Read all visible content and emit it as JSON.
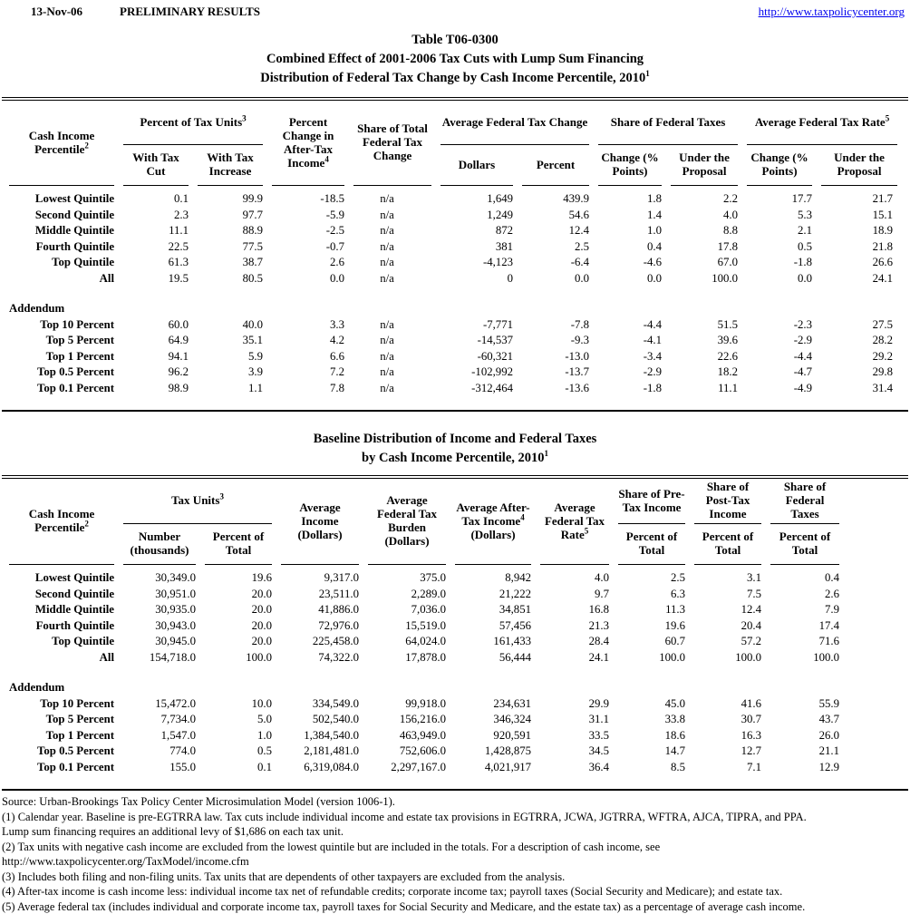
{
  "colors": {
    "link_blue": "#0000ee"
  },
  "topbar": {
    "date": "13-Nov-06",
    "status": "PRELIMINARY RESULTS",
    "link": "http://www.taxpolicycenter.org"
  },
  "title": {
    "line1": "Table T06-0300",
    "line2": "Combined Effect of 2001-2006 Tax Cuts with Lump Sum Financing",
    "line3": "Distribution of Federal Tax Change by Cash Income Percentile, 2010",
    "line3_sup": "1"
  },
  "table1": {
    "h": {
      "stub_pre": "Cash Income Percentile",
      "stub_sup": "2",
      "tax_units_pre": "Percent of Tax Units",
      "tax_units_sup": "3",
      "with_cut": "With Tax Cut",
      "with_increase": "With Tax Increase",
      "pct_change_pre": "Percent Change in After-Tax Income",
      "pct_change_sup": "4",
      "share_total": "Share of Total Federal Tax Change",
      "avg_change": "Average Federal Tax Change",
      "dollars": "Dollars",
      "percent": "Percent",
      "share_fed": "Share of Federal Taxes",
      "chg_pts": "Change (% Points)",
      "under_prop": "Under the Proposal",
      "avg_rate_pre": "Average Federal Tax Rate",
      "avg_rate_sup": "5"
    },
    "rows": [
      {
        "label": "Lowest Quintile",
        "values": [
          "0.1",
          "99.9",
          "-18.5",
          "n/a",
          "1,649",
          "439.9",
          "1.8",
          "2.2",
          "17.7",
          "21.7"
        ]
      },
      {
        "label": "Second Quintile",
        "values": [
          "2.3",
          "97.7",
          "-5.9",
          "n/a",
          "1,249",
          "54.6",
          "1.4",
          "4.0",
          "5.3",
          "15.1"
        ]
      },
      {
        "label": "Middle Quintile",
        "values": [
          "11.1",
          "88.9",
          "-2.5",
          "n/a",
          "872",
          "12.4",
          "1.0",
          "8.8",
          "2.1",
          "18.9"
        ]
      },
      {
        "label": "Fourth Quintile",
        "values": [
          "22.5",
          "77.5",
          "-0.7",
          "n/a",
          "381",
          "2.5",
          "0.4",
          "17.8",
          "0.5",
          "21.8"
        ]
      },
      {
        "label": "Top Quintile",
        "values": [
          "61.3",
          "38.7",
          "2.6",
          "n/a",
          "-4,123",
          "-6.4",
          "-4.6",
          "67.0",
          "-1.8",
          "26.6"
        ]
      },
      {
        "label": "All",
        "values": [
          "19.5",
          "80.5",
          "0.0",
          "n/a",
          "0",
          "0.0",
          "0.0",
          "100.0",
          "0.0",
          "24.1"
        ]
      }
    ],
    "addendum_label": "Addendum",
    "addendum_rows": [
      {
        "label": "Top 10 Percent",
        "values": [
          "60.0",
          "40.0",
          "3.3",
          "n/a",
          "-7,771",
          "-7.8",
          "-4.4",
          "51.5",
          "-2.3",
          "27.5"
        ]
      },
      {
        "label": "Top 5 Percent",
        "values": [
          "64.9",
          "35.1",
          "4.2",
          "n/a",
          "-14,537",
          "-9.3",
          "-4.1",
          "39.6",
          "-2.9",
          "28.2"
        ]
      },
      {
        "label": "Top 1 Percent",
        "values": [
          "94.1",
          "5.9",
          "6.6",
          "n/a",
          "-60,321",
          "-13.0",
          "-3.4",
          "22.6",
          "-4.4",
          "29.2"
        ]
      },
      {
        "label": "Top 0.5 Percent",
        "values": [
          "96.2",
          "3.9",
          "7.2",
          "n/a",
          "-102,992",
          "-13.7",
          "-2.9",
          "18.2",
          "-4.7",
          "29.8"
        ]
      },
      {
        "label": "Top 0.1 Percent",
        "values": [
          "98.9",
          "1.1",
          "7.8",
          "n/a",
          "-312,464",
          "-13.6",
          "-1.8",
          "11.1",
          "-4.9",
          "31.4"
        ]
      }
    ]
  },
  "title2": {
    "line1": "Baseline Distribution of Income and Federal Taxes",
    "line2": "by Cash Income Percentile, 2010",
    "line2_sup": "1"
  },
  "table2": {
    "h": {
      "stub_pre": "Cash Income Percentile",
      "stub_sup": "2",
      "tax_units_pre": "Tax Units",
      "tax_units_sup": "3",
      "number": "Number (thousands)",
      "pct_total": "Percent of Total",
      "avg_income": "Average Income (Dollars)",
      "avg_burden": "Average Federal Tax Burden (Dollars)",
      "aftertax_pre": "Average After-Tax Income",
      "aftertax_sup": "4",
      "aftertax_post": " (Dollars)",
      "avg_rate_pre": "Average Federal Tax Rate",
      "avg_rate_sup": "5",
      "share_pre_tax": "Share of Pre-Tax Income",
      "share_post_tax": "Share of Post-Tax Income",
      "share_fed_taxes": "Share of Federal Taxes"
    },
    "rows": [
      {
        "label": "Lowest Quintile",
        "values": [
          "30,349.0",
          "19.6",
          "9,317.0",
          "375.0",
          "8,942",
          "4.0",
          "2.5",
          "3.1",
          "0.4"
        ]
      },
      {
        "label": "Second Quintile",
        "values": [
          "30,951.0",
          "20.0",
          "23,511.0",
          "2,289.0",
          "21,222",
          "9.7",
          "6.3",
          "7.5",
          "2.6"
        ]
      },
      {
        "label": "Middle Quintile",
        "values": [
          "30,935.0",
          "20.0",
          "41,886.0",
          "7,036.0",
          "34,851",
          "16.8",
          "11.3",
          "12.4",
          "7.9"
        ]
      },
      {
        "label": "Fourth Quintile",
        "values": [
          "30,943.0",
          "20.0",
          "72,976.0",
          "15,519.0",
          "57,456",
          "21.3",
          "19.6",
          "20.4",
          "17.4"
        ]
      },
      {
        "label": "Top Quintile",
        "values": [
          "30,945.0",
          "20.0",
          "225,458.0",
          "64,024.0",
          "161,433",
          "28.4",
          "60.7",
          "57.2",
          "71.6"
        ]
      },
      {
        "label": "All",
        "values": [
          "154,718.0",
          "100.0",
          "74,322.0",
          "17,878.0",
          "56,444",
          "24.1",
          "100.0",
          "100.0",
          "100.0"
        ]
      }
    ],
    "addendum_label": "Addendum",
    "addendum_rows": [
      {
        "label": "Top 10 Percent",
        "values": [
          "15,472.0",
          "10.0",
          "334,549.0",
          "99,918.0",
          "234,631",
          "29.9",
          "45.0",
          "41.6",
          "55.9"
        ]
      },
      {
        "label": "Top 5 Percent",
        "values": [
          "7,734.0",
          "5.0",
          "502,540.0",
          "156,216.0",
          "346,324",
          "31.1",
          "33.8",
          "30.7",
          "43.7"
        ]
      },
      {
        "label": "Top 1 Percent",
        "values": [
          "1,547.0",
          "1.0",
          "1,384,540.0",
          "463,949.0",
          "920,591",
          "33.5",
          "18.6",
          "16.3",
          "26.0"
        ]
      },
      {
        "label": "Top 0.5 Percent",
        "values": [
          "774.0",
          "0.5",
          "2,181,481.0",
          "752,606.0",
          "1,428,875",
          "34.5",
          "14.7",
          "12.7",
          "21.1"
        ]
      },
      {
        "label": "Top 0.1 Percent",
        "values": [
          "155.0",
          "0.1",
          "6,319,084.0",
          "2,297,167.0",
          "4,021,917",
          "36.4",
          "8.5",
          "7.1",
          "12.9"
        ]
      }
    ]
  },
  "notes": [
    "Source: Urban-Brookings Tax Policy Center Microsimulation Model (version 1006-1).",
    "(1) Calendar year. Baseline is pre-EGTRRA law. Tax cuts include individual income and estate tax provisions in EGTRRA, JCWA, JGTRRA, WFTRA, AJCA, TIPRA, and PPA.",
    "Lump sum financing requires an additional levy of $1,686 on each tax unit.",
    "(2) Tax units with negative cash income are excluded from the lowest quintile but are included in the totals. For a description of cash income, see",
    "http://www.taxpolicycenter.org/TaxModel/income.cfm",
    "(3) Includes both filing and non-filing units.  Tax units that are dependents of other taxpayers are excluded from the analysis.",
    "(4) After-tax income is cash income less: individual income tax net of refundable credits; corporate income tax; payroll taxes (Social Security and Medicare); and estate tax.",
    "(5) Average federal tax (includes individual and corporate income tax, payroll taxes for Social Security and Medicare, and the estate tax) as a percentage of average cash income."
  ]
}
